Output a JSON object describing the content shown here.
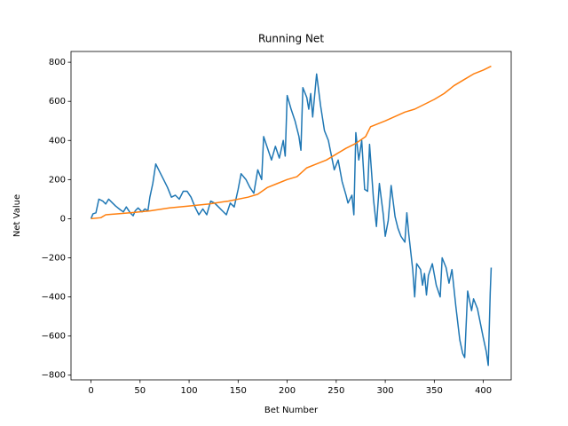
{
  "chart_data": {
    "type": "line",
    "title": "Running Net",
    "x_label": "Bet Number",
    "y_label": "Net Value",
    "xlim": [
      -20.4,
      428.4
    ],
    "ylim": [
      -824,
      855
    ],
    "xticks": [
      0,
      50,
      100,
      150,
      200,
      250,
      300,
      350,
      400
    ],
    "yticks": [
      {
        "value": -800,
        "label": "−800"
      },
      {
        "value": -600,
        "label": "−600"
      },
      {
        "value": -400,
        "label": "−400"
      },
      {
        "value": -200,
        "label": "−200"
      },
      0,
      200,
      400,
      600,
      800
    ],
    "series": [
      {
        "color": "#1f77b4",
        "x": [
          0,
          2,
          5,
          8,
          12,
          15,
          18,
          22,
          25,
          30,
          33,
          36,
          40,
          43,
          45,
          48,
          52,
          55,
          58,
          60,
          63,
          66,
          70,
          74,
          78,
          82,
          86,
          90,
          94,
          98,
          102,
          106,
          110,
          114,
          118,
          122,
          126,
          130,
          134,
          138,
          142,
          146,
          150,
          153,
          158,
          162,
          166,
          170,
          174,
          176,
          180,
          184,
          188,
          192,
          196,
          198,
          200,
          204,
          208,
          212,
          214,
          216,
          220,
          222,
          224,
          226,
          230,
          234,
          238,
          242,
          246,
          248,
          252,
          256,
          260,
          262,
          266,
          268,
          270,
          273,
          276,
          279,
          282,
          284,
          288,
          291,
          294,
          298,
          300,
          303,
          306,
          310,
          313,
          316,
          320,
          322,
          324,
          328,
          330,
          332,
          336,
          338,
          340,
          342,
          344,
          348,
          352,
          356,
          358,
          362,
          365,
          368,
          372,
          376,
          379,
          381,
          384,
          388,
          390,
          394,
          396,
          400,
          403,
          405,
          407,
          408
        ],
        "values": [
          0,
          25,
          30,
          100,
          90,
          75,
          100,
          80,
          65,
          45,
          35,
          60,
          30,
          15,
          40,
          55,
          35,
          50,
          40,
          110,
          180,
          280,
          240,
          200,
          160,
          110,
          120,
          100,
          140,
          140,
          110,
          60,
          20,
          50,
          20,
          90,
          80,
          60,
          40,
          20,
          80,
          60,
          150,
          230,
          200,
          160,
          130,
          250,
          200,
          420,
          360,
          300,
          370,
          310,
          400,
          320,
          630,
          560,
          500,
          420,
          350,
          670,
          620,
          560,
          640,
          520,
          740,
          580,
          450,
          400,
          300,
          250,
          300,
          190,
          120,
          80,
          120,
          20,
          440,
          300,
          400,
          150,
          140,
          380,
          100,
          -40,
          180,
          20,
          -90,
          -10,
          170,
          10,
          -50,
          -90,
          -120,
          30,
          -80,
          -260,
          -400,
          -230,
          -260,
          -340,
          -280,
          -390,
          -290,
          -230,
          -340,
          -400,
          -200,
          -250,
          -330,
          -260,
          -450,
          -620,
          -690,
          -710,
          -370,
          -470,
          -410,
          -460,
          -510,
          -610,
          -680,
          -750,
          -380,
          -250
        ]
      },
      {
        "color": "#ff7f0e",
        "x": [
          0,
          10,
          15,
          40,
          60,
          80,
          100,
          120,
          140,
          160,
          170,
          180,
          190,
          200,
          210,
          220,
          230,
          240,
          250,
          260,
          270,
          280,
          285,
          300,
          320,
          330,
          350,
          360,
          370,
          380,
          390,
          400,
          408
        ],
        "values": [
          0,
          5,
          20,
          30,
          40,
          55,
          65,
          75,
          90,
          110,
          125,
          160,
          180,
          200,
          215,
          260,
          280,
          300,
          330,
          360,
          385,
          420,
          470,
          500,
          545,
          560,
          610,
          640,
          680,
          710,
          740,
          760,
          780
        ]
      }
    ]
  }
}
